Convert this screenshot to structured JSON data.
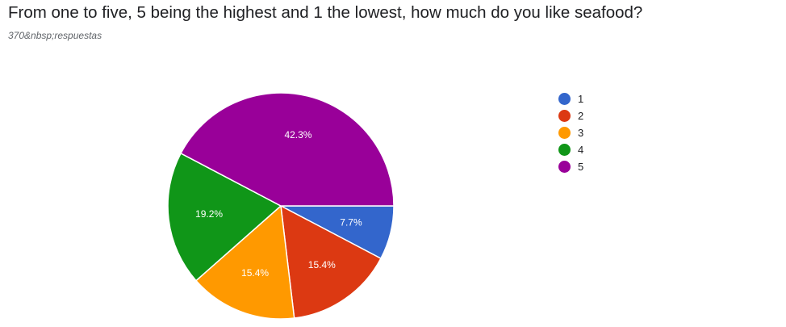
{
  "question": {
    "title": "From one to five, 5 being the highest and 1 the lowest, how much do you like seafood?",
    "responses_label": "370&nbsp;respuestas"
  },
  "chart_data": {
    "type": "pie",
    "title": "",
    "categories": [
      "1",
      "2",
      "3",
      "4",
      "5"
    ],
    "values": [
      7.7,
      15.4,
      15.4,
      19.2,
      42.3
    ],
    "labels": [
      "7.7%",
      "15.4%",
      "15.4%",
      "19.2%",
      "42.3%"
    ],
    "colors": [
      "#3366cc",
      "#dc3912",
      "#ff9900",
      "#109618",
      "#990099"
    ],
    "legend_position": "right"
  }
}
